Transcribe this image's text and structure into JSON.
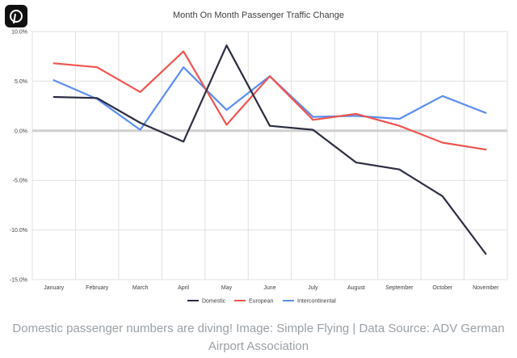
{
  "chart_data": {
    "type": "line",
    "title": "Month On Month Passenger Traffic Change",
    "xlabel": "",
    "ylabel": "",
    "categories": [
      "January",
      "February",
      "March",
      "April",
      "May",
      "June",
      "July",
      "August",
      "September",
      "October",
      "November"
    ],
    "ylim": [
      -15,
      10
    ],
    "yticks": [
      10,
      5,
      0,
      -5,
      -10,
      -15
    ],
    "ytick_labels": [
      "10.0%",
      "5.0%",
      "0.0%",
      "-5.0%",
      "-10.0%",
      "-15.0%"
    ],
    "series": [
      {
        "name": "Domestic",
        "color": "#2b2d42",
        "values": [
          3.4,
          3.3,
          0.8,
          -1.1,
          8.6,
          0.5,
          0.1,
          -3.2,
          -3.9,
          -6.6,
          -12.4
        ]
      },
      {
        "name": "European",
        "color": "#f0544f",
        "values": [
          6.8,
          6.4,
          3.9,
          8.0,
          0.6,
          5.5,
          1.1,
          1.7,
          0.5,
          -1.2,
          -1.9
        ]
      },
      {
        "name": "Intercontinental",
        "color": "#5b8def",
        "values": [
          5.1,
          3.2,
          0.1,
          6.4,
          2.1,
          5.5,
          1.4,
          1.5,
          1.2,
          3.5,
          1.8
        ]
      }
    ],
    "grid": true,
    "legend_position": "bottom"
  },
  "caption": "Domestic passenger numbers are diving! Image: Simple Flying | Data Source: ADV German Airport Association",
  "icons": {
    "share": "pinterest-icon"
  },
  "colors": {
    "zero_line": "#d0d0d0",
    "grid": "#e0e0e0",
    "caption_text": "#9aa0a6"
  }
}
